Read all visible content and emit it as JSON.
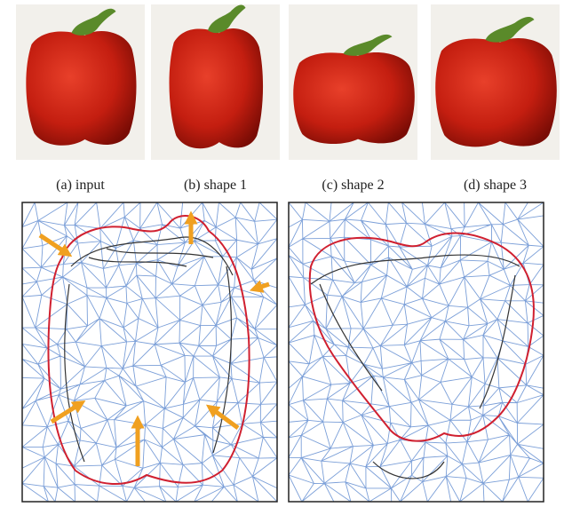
{
  "panels": [
    {
      "caption": "(a) input"
    },
    {
      "caption": "(b) shape 1"
    },
    {
      "caption": "(c) shape 2"
    },
    {
      "caption": "(d) shape 3"
    }
  ]
}
